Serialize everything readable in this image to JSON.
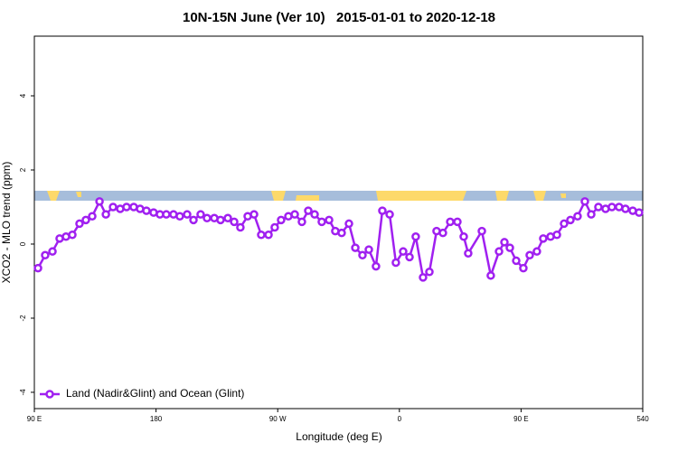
{
  "chart_data": {
    "type": "line",
    "title": "10N-15N June (Ver 10)   2015-01-01 to 2020-12-18",
    "x_label": "Longitude (deg E)",
    "y_label": "XCO2 - MLO trend (ppm)",
    "xlim": [
      90,
      540
    ],
    "ylim": [
      -4.44,
      5.61
    ],
    "xticks": [
      {
        "value": 90,
        "label": "90 E"
      },
      180,
      {
        "value": 270,
        "label": "90 W"
      },
      {
        "value": 360,
        "label": "0"
      },
      {
        "value": 450,
        "label": "90 E"
      },
      540
    ],
    "yticks": [
      -4,
      -2,
      0,
      2,
      4
    ],
    "legend": "bottom-left",
    "x": [
      92.7,
      98.0,
      103.4,
      108.7,
      113.4,
      118.1,
      123.4,
      128.1,
      132.8,
      138.2,
      142.9,
      148.2,
      153.5,
      158.2,
      163.5,
      168.2,
      172.9,
      178.2,
      182.9,
      187.6,
      192.9,
      197.6,
      203.0,
      207.7,
      213.0,
      217.7,
      223.1,
      227.7,
      233.1,
      237.8,
      242.4,
      247.8,
      252.5,
      257.8,
      263.2,
      267.8,
      272.5,
      277.9,
      282.6,
      287.9,
      292.6,
      297.3,
      302.6,
      308.0,
      312.6,
      317.3,
      322.7,
      327.4,
      332.7,
      337.4,
      342.7,
      347.4,
      352.8,
      357.4,
      362.8,
      367.5,
      372.1,
      377.5,
      382.2,
      387.5,
      392.2,
      397.6,
      402.9,
      407.6,
      410.9,
      421.0,
      427.6,
      433.7,
      437.7,
      441.7,
      446.4,
      451.7,
      456.4,
      461.7,
      466.4,
      471.8,
      476.5,
      481.8,
      486.5,
      491.8,
      497.2,
      501.9,
      507.2,
      512.5,
      517.2,
      522.5,
      527.2,
      532.6,
      537.3
    ],
    "series": [
      {
        "name": "Land (Nadir&Glint) and Ocean (Glint)",
        "color": "#a020f0",
        "values": [
          -0.65,
          -0.3,
          -0.2,
          0.15,
          0.2,
          0.25,
          0.55,
          0.65,
          0.75,
          1.15,
          0.8,
          1.0,
          0.95,
          1.0,
          1.0,
          0.95,
          0.9,
          0.85,
          0.8,
          0.8,
          0.8,
          0.75,
          0.8,
          0.65,
          0.8,
          0.7,
          0.7,
          0.65,
          0.7,
          0.6,
          0.45,
          0.75,
          0.8,
          0.25,
          0.25,
          0.45,
          0.65,
          0.75,
          0.8,
          0.6,
          0.9,
          0.8,
          0.6,
          0.65,
          0.35,
          0.3,
          0.55,
          -0.1,
          -0.3,
          -0.15,
          -0.6,
          0.9,
          0.8,
          -0.5,
          -0.2,
          -0.35,
          0.2,
          -0.9,
          -0.75,
          0.35,
          0.3,
          0.6,
          0.6,
          0.2,
          -0.25,
          0.35,
          -0.85,
          -0.2,
          0.05,
          -0.1,
          -0.45,
          -0.65,
          -0.3,
          -0.2,
          0.15,
          0.2,
          0.25,
          0.55,
          0.65,
          0.75,
          1.15,
          0.8,
          1.0,
          0.95,
          1.0,
          1.0,
          0.95,
          0.9,
          0.85
        ]
      }
    ]
  }
}
